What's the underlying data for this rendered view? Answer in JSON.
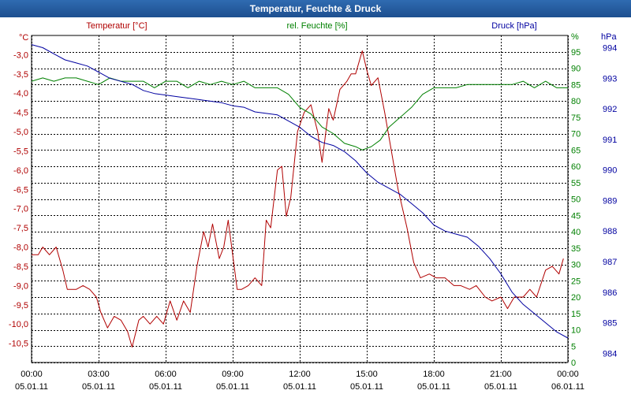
{
  "window": {
    "title": "Temperatur, Feuchte & Druck"
  },
  "colors": {
    "temperature": "#b00000",
    "humidity": "#008000",
    "pressure": "#0000a0",
    "grid": "#000000"
  },
  "chart_data": {
    "type": "line",
    "title": "Temperatur, Feuchte & Druck",
    "grid": true,
    "x_ticks": [
      {
        "time": "00:00",
        "date": "05.01.11"
      },
      {
        "time": "03:00",
        "date": "05.01.11"
      },
      {
        "time": "06:00",
        "date": "05.01.11"
      },
      {
        "time": "09:00",
        "date": "05.01.11"
      },
      {
        "time": "12:00",
        "date": "05.01.11"
      },
      {
        "time": "15:00",
        "date": "05.01.11"
      },
      {
        "time": "18:00",
        "date": "05.01.11"
      },
      {
        "time": "21:00",
        "date": "05.01.11"
      },
      {
        "time": "00:00",
        "date": "06.01.11"
      }
    ],
    "x_range_hours": [
      0,
      24
    ],
    "axes": {
      "temperature": {
        "unit": "°C",
        "label": "Temperatur [°C]",
        "range": [
          -11.0,
          -2.5
        ],
        "ticks": [
          "-3,0",
          "-3,5",
          "-4,0",
          "-4,5",
          "-5,0",
          "-5,5",
          "-6,0",
          "-6,5",
          "-7,0",
          "-7,5",
          "-8,0",
          "-8,5",
          "-9,0",
          "-9,5",
          "-10,0",
          "-10,5"
        ]
      },
      "humidity": {
        "unit": "%",
        "label": "rel. Feuchte [%]",
        "range": [
          0,
          100
        ],
        "ticks": [
          "95",
          "90",
          "85",
          "80",
          "75",
          "70",
          "65",
          "60",
          "55",
          "50",
          "45",
          "40",
          "35",
          "30",
          "25",
          "20",
          "15",
          "10",
          "5",
          "0"
        ]
      },
      "pressure": {
        "unit": "hPa",
        "label": "Druck [hPa]",
        "range": [
          983.7,
          994.4
        ],
        "ticks": [
          "994",
          "993",
          "992",
          "991",
          "990",
          "989",
          "988",
          "987",
          "986",
          "985",
          "984"
        ]
      }
    },
    "series": [
      {
        "name": "Temperatur [°C]",
        "axis": "temperature",
        "points": [
          [
            0,
            -8.2
          ],
          [
            0.3,
            -8.2
          ],
          [
            0.5,
            -8.0
          ],
          [
            0.8,
            -8.2
          ],
          [
            1.1,
            -8.0
          ],
          [
            1.4,
            -8.6
          ],
          [
            1.6,
            -9.1
          ],
          [
            2.0,
            -9.1
          ],
          [
            2.3,
            -9.0
          ],
          [
            2.6,
            -9.1
          ],
          [
            2.9,
            -9.3
          ],
          [
            3.1,
            -9.7
          ],
          [
            3.4,
            -10.1
          ],
          [
            3.7,
            -9.8
          ],
          [
            4.0,
            -9.9
          ],
          [
            4.3,
            -10.2
          ],
          [
            4.5,
            -10.6
          ],
          [
            4.8,
            -9.9
          ],
          [
            5.0,
            -9.8
          ],
          [
            5.3,
            -10.0
          ],
          [
            5.6,
            -9.8
          ],
          [
            5.9,
            -10.0
          ],
          [
            6.2,
            -9.4
          ],
          [
            6.5,
            -9.9
          ],
          [
            6.8,
            -9.4
          ],
          [
            7.1,
            -9.7
          ],
          [
            7.4,
            -8.5
          ],
          [
            7.7,
            -7.6
          ],
          [
            7.9,
            -8.0
          ],
          [
            8.1,
            -7.4
          ],
          [
            8.4,
            -8.3
          ],
          [
            8.6,
            -8.0
          ],
          [
            8.8,
            -7.3
          ],
          [
            9.0,
            -8.2
          ],
          [
            9.2,
            -9.1
          ],
          [
            9.4,
            -9.1
          ],
          [
            9.7,
            -9.0
          ],
          [
            10.0,
            -8.8
          ],
          [
            10.3,
            -9.0
          ],
          [
            10.5,
            -7.3
          ],
          [
            10.7,
            -7.5
          ],
          [
            11.0,
            -6.0
          ],
          [
            11.2,
            -5.9
          ],
          [
            11.4,
            -7.2
          ],
          [
            11.6,
            -6.7
          ],
          [
            11.9,
            -5.0
          ],
          [
            12.2,
            -4.5
          ],
          [
            12.5,
            -4.3
          ],
          [
            12.8,
            -5.0
          ],
          [
            13.0,
            -5.8
          ],
          [
            13.3,
            -4.4
          ],
          [
            13.5,
            -4.7
          ],
          [
            13.8,
            -3.9
          ],
          [
            14.1,
            -3.7
          ],
          [
            14.3,
            -3.5
          ],
          [
            14.5,
            -3.5
          ],
          [
            14.8,
            -2.9
          ],
          [
            15.0,
            -3.4
          ],
          [
            15.2,
            -3.8
          ],
          [
            15.5,
            -3.6
          ],
          [
            15.8,
            -4.5
          ],
          [
            16.1,
            -5.5
          ],
          [
            16.4,
            -6.5
          ],
          [
            16.8,
            -7.5
          ],
          [
            17.1,
            -8.4
          ],
          [
            17.4,
            -8.8
          ],
          [
            17.8,
            -8.7
          ],
          [
            18.1,
            -8.8
          ],
          [
            18.5,
            -8.8
          ],
          [
            18.9,
            -9.0
          ],
          [
            19.2,
            -9.0
          ],
          [
            19.6,
            -9.1
          ],
          [
            19.9,
            -9.0
          ],
          [
            20.3,
            -9.3
          ],
          [
            20.6,
            -9.4
          ],
          [
            21.0,
            -9.3
          ],
          [
            21.3,
            -9.6
          ],
          [
            21.6,
            -9.3
          ],
          [
            22.0,
            -9.3
          ],
          [
            22.3,
            -9.1
          ],
          [
            22.6,
            -9.3
          ],
          [
            23.0,
            -8.6
          ],
          [
            23.3,
            -8.5
          ],
          [
            23.6,
            -8.7
          ],
          [
            23.8,
            -8.3
          ]
        ]
      },
      {
        "name": "rel. Feuchte [%]",
        "axis": "humidity",
        "points": [
          [
            0,
            86
          ],
          [
            0.5,
            87
          ],
          [
            1.0,
            86
          ],
          [
            1.5,
            87
          ],
          [
            2.0,
            87
          ],
          [
            2.5,
            86
          ],
          [
            3.0,
            85
          ],
          [
            3.5,
            87
          ],
          [
            4.0,
            86
          ],
          [
            4.5,
            86
          ],
          [
            5.0,
            86
          ],
          [
            5.5,
            84
          ],
          [
            6.0,
            86
          ],
          [
            6.5,
            86
          ],
          [
            7.0,
            84
          ],
          [
            7.5,
            86
          ],
          [
            8.0,
            85
          ],
          [
            8.5,
            86
          ],
          [
            9.0,
            85
          ],
          [
            9.5,
            86
          ],
          [
            10.0,
            84
          ],
          [
            10.5,
            84
          ],
          [
            11.0,
            84
          ],
          [
            11.5,
            82
          ],
          [
            12.0,
            78
          ],
          [
            12.5,
            76
          ],
          [
            13.0,
            72
          ],
          [
            13.5,
            70
          ],
          [
            14.0,
            67
          ],
          [
            14.5,
            66
          ],
          [
            14.8,
            65
          ],
          [
            15.2,
            66
          ],
          [
            15.6,
            68
          ],
          [
            16.0,
            72
          ],
          [
            16.5,
            75
          ],
          [
            17.0,
            78
          ],
          [
            17.5,
            82
          ],
          [
            18.0,
            84
          ],
          [
            18.5,
            84
          ],
          [
            19.0,
            84
          ],
          [
            19.5,
            85
          ],
          [
            20.0,
            85
          ],
          [
            20.5,
            85
          ],
          [
            21.0,
            85
          ],
          [
            21.5,
            85
          ],
          [
            22.0,
            86
          ],
          [
            22.5,
            84
          ],
          [
            23.0,
            86
          ],
          [
            23.5,
            84
          ],
          [
            24.0,
            84
          ]
        ]
      },
      {
        "name": "Druck [hPa]",
        "axis": "pressure",
        "points": [
          [
            0,
            994.1
          ],
          [
            0.5,
            994.0
          ],
          [
            1.0,
            993.8
          ],
          [
            1.5,
            993.6
          ],
          [
            2.0,
            993.5
          ],
          [
            2.5,
            993.4
          ],
          [
            3.0,
            993.2
          ],
          [
            3.5,
            993.0
          ],
          [
            4.0,
            992.9
          ],
          [
            4.5,
            992.8
          ],
          [
            5.0,
            992.6
          ],
          [
            5.5,
            992.5
          ],
          [
            6.0,
            992.45
          ],
          [
            6.5,
            992.4
          ],
          [
            7.0,
            992.35
          ],
          [
            7.5,
            992.3
          ],
          [
            8.0,
            992.25
          ],
          [
            8.5,
            992.2
          ],
          [
            9.0,
            992.1
          ],
          [
            9.5,
            992.05
          ],
          [
            10.0,
            991.9
          ],
          [
            10.5,
            991.85
          ],
          [
            11.0,
            991.8
          ],
          [
            11.5,
            991.6
          ],
          [
            12.0,
            991.4
          ],
          [
            12.5,
            991.1
          ],
          [
            13.0,
            990.9
          ],
          [
            13.5,
            990.8
          ],
          [
            14.0,
            990.6
          ],
          [
            14.5,
            990.3
          ],
          [
            15.0,
            989.9
          ],
          [
            15.5,
            989.6
          ],
          [
            16.0,
            989.4
          ],
          [
            16.5,
            989.2
          ],
          [
            17.0,
            988.9
          ],
          [
            17.5,
            988.6
          ],
          [
            18.0,
            988.2
          ],
          [
            18.5,
            988.0
          ],
          [
            19.0,
            987.9
          ],
          [
            19.5,
            987.8
          ],
          [
            20.0,
            987.5
          ],
          [
            20.5,
            987.1
          ],
          [
            21.0,
            986.6
          ],
          [
            21.5,
            986.0
          ],
          [
            22.0,
            985.6
          ],
          [
            22.5,
            985.3
          ],
          [
            23.0,
            985.0
          ],
          [
            23.5,
            984.7
          ],
          [
            24.0,
            984.5
          ]
        ]
      }
    ]
  }
}
